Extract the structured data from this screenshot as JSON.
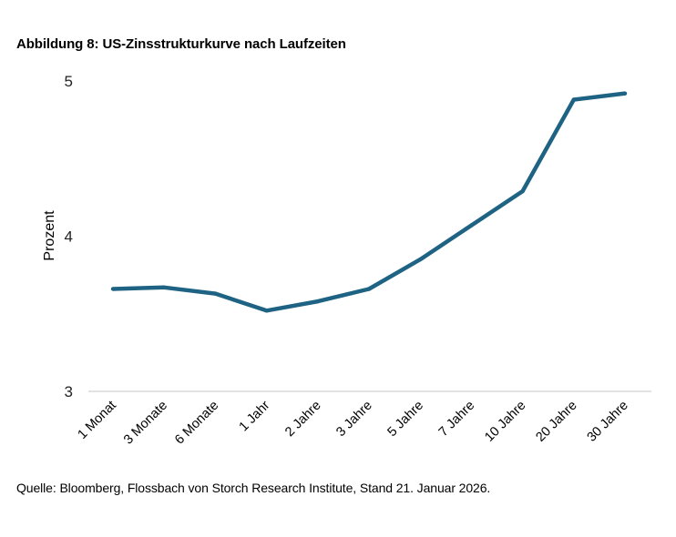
{
  "chart_title": "Abbildung 8: US-Zinsstrukturkurve nach Laufzeiten",
  "source": "Quelle: Bloomberg, Flossbach von Storch Research Institute, Stand 21. Januar 2026.",
  "colors": {
    "line": "#1f6384",
    "axis": "#d0d0d0"
  },
  "chart_data": {
    "type": "line",
    "title": "Abbildung 8: US-Zinsstrukturkurve nach Laufzeiten",
    "xlabel": "",
    "ylabel": "Prozent",
    "ylim": [
      3,
      5
    ],
    "yticks": [
      "3",
      "4",
      "5"
    ],
    "grid": false,
    "categories": [
      "1 Monat",
      "3 Monate",
      "6 Monate",
      "1 Jahr",
      "2 Jahre",
      "3 Jahre",
      "5 Jahre",
      "7 Jahre",
      "10 Jahre",
      "20 Jahre",
      "30 Jahre"
    ],
    "series": [
      {
        "name": "US-Zinsstrukturkurve",
        "values": [
          3.66,
          3.67,
          3.63,
          3.52,
          3.58,
          3.66,
          3.85,
          4.07,
          4.29,
          4.88,
          4.92
        ]
      }
    ]
  }
}
